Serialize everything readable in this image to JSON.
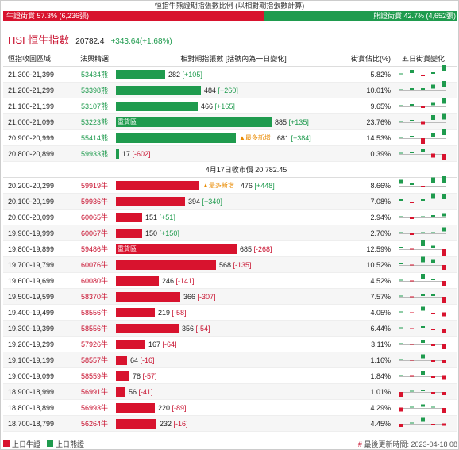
{
  "title": "恒指牛熊證期指張數比例 (以相對期指張數計算)",
  "ratio": {
    "bull_label": "牛證街貨 57.3% (6,236張)",
    "bear_label": "熊證街貨 42.7% (4,652張)",
    "bull_pct": 57.3,
    "bear_pct": 42.7,
    "bull_color": "#d8132e",
    "bear_color": "#1f9b4e"
  },
  "index": {
    "name": "HSI 恒生指數",
    "value": "20782.4",
    "change": "+343.64(+1.68%)"
  },
  "headers": {
    "range": "恒指收回區域",
    "code": "法興精選",
    "bar": "相對期指張數 [括號內為一日變化]",
    "pct": "街貨佔比(%)",
    "spark": "五日街貨變化"
  },
  "bear_rows": [
    {
      "range": "21,300-21,399",
      "code": "53434熊",
      "count": "282",
      "change": "[+105]",
      "pct": "5.82%",
      "value": 282,
      "tag": "",
      "new": "",
      "spark": [
        0,
        0.5,
        -0.2,
        0.3,
        1
      ]
    },
    {
      "range": "21,200-21,299",
      "code": "53398熊",
      "count": "484",
      "change": "[+260]",
      "pct": "10.01%",
      "value": 484,
      "tag": "",
      "new": "",
      "spark": [
        0,
        0.3,
        0.2,
        0.6,
        1
      ]
    },
    {
      "range": "21,100-21,199",
      "code": "53107熊",
      "count": "466",
      "change": "[+165]",
      "pct": "9.65%",
      "value": 466,
      "tag": "",
      "new": "",
      "spark": [
        0,
        0.2,
        -0.2,
        0.4,
        0.9
      ]
    },
    {
      "range": "21,000-21,099",
      "code": "53223熊",
      "count": "885",
      "change": "[+135]",
      "pct": "23.76%",
      "value": 885,
      "tag": "重貨區",
      "new": "",
      "spark": [
        0,
        0.2,
        -0.4,
        0.8,
        0.9
      ]
    },
    {
      "range": "20,900-20,999",
      "code": "55414熊",
      "count": "681",
      "change": "[+384]",
      "pct": "14.53%",
      "value": 681,
      "tag": "",
      "new": "▲最多新增",
      "spark": [
        0,
        0.3,
        -1,
        0.5,
        1
      ]
    },
    {
      "range": "20,800-20,899",
      "code": "59933熊",
      "count": "17",
      "change": "[-602]",
      "pct": "0.39%",
      "value": 17,
      "tag": "",
      "new": "",
      "spark": [
        0,
        0.2,
        0.5,
        -0.6,
        -1
      ]
    }
  ],
  "close_label": "4月17日收市價 20,782.45",
  "bull_rows": [
    {
      "range": "20,200-20,299",
      "code": "59919牛",
      "count": "476",
      "change": "[+448]",
      "pct": "8.66%",
      "value": 476,
      "tag": "",
      "new": "▲最多新增",
      "spark": [
        0.6,
        0.3,
        -0.2,
        0.9,
        1
      ]
    },
    {
      "range": "20,100-20,199",
      "code": "59936牛",
      "count": "394",
      "change": "[+340]",
      "pct": "7.08%",
      "value": 394,
      "tag": "",
      "new": "",
      "spark": [
        0.3,
        -0.2,
        0.2,
        0.9,
        0.8
      ]
    },
    {
      "range": "20,000-20,099",
      "code": "60065牛",
      "count": "151",
      "change": "[+51]",
      "pct": "2.94%",
      "value": 151,
      "tag": "",
      "new": "",
      "spark": [
        0.1,
        -0.3,
        0.1,
        0.2,
        0.4
      ]
    },
    {
      "range": "19,900-19,999",
      "code": "60067牛",
      "count": "150",
      "change": "[+150]",
      "pct": "2.70%",
      "value": 150,
      "tag": "",
      "new": "",
      "spark": [
        0,
        -0.2,
        0.1,
        0.1,
        0.6
      ]
    },
    {
      "range": "19,800-19,899",
      "code": "59486牛",
      "count": "685",
      "change": "[-268]",
      "pct": "12.59%",
      "value": 685,
      "tag": "重貨區",
      "new": "",
      "spark": [
        0.3,
        -0.1,
        1,
        0.4,
        -1
      ]
    },
    {
      "range": "19,700-19,799",
      "code": "60076牛",
      "count": "568",
      "change": "[-135]",
      "pct": "10.52%",
      "value": 568,
      "tag": "",
      "new": "",
      "spark": [
        0.2,
        -0.1,
        0.9,
        0.6,
        -0.8
      ]
    },
    {
      "range": "19,600-19,699",
      "code": "60080牛",
      "count": "246",
      "change": "[-141]",
      "pct": "4.52%",
      "value": 246,
      "tag": "",
      "new": "",
      "spark": [
        0.1,
        -0.1,
        0.7,
        0.3,
        -0.8
      ]
    },
    {
      "range": "19,500-19,599",
      "code": "58370牛",
      "count": "366",
      "change": "[-307]",
      "pct": "7.57%",
      "value": 366,
      "tag": "",
      "new": "",
      "spark": [
        0.1,
        -0.1,
        0.3,
        0.2,
        -1
      ]
    },
    {
      "range": "19,400-19,499",
      "code": "58556牛",
      "count": "219",
      "change": "[-58]",
      "pct": "4.05%",
      "value": 219,
      "tag": "",
      "new": "",
      "spark": [
        0.1,
        -0.1,
        0.6,
        -0.3,
        -0.6
      ]
    },
    {
      "range": "19,300-19,399",
      "code": "58556牛",
      "count": "356",
      "change": "[-54]",
      "pct": "6.44%",
      "value": 356,
      "tag": "",
      "new": "",
      "spark": [
        0.1,
        -0.1,
        0.3,
        -0.2,
        -0.7
      ]
    },
    {
      "range": "19,200-19,299",
      "code": "57926牛",
      "count": "167",
      "change": "[-64]",
      "pct": "3.11%",
      "value": 167,
      "tag": "",
      "new": "",
      "spark": [
        0.1,
        -0.1,
        0.5,
        -0.3,
        -0.7
      ]
    },
    {
      "range": "19,100-19,199",
      "code": "58557牛",
      "count": "64",
      "change": "[-16]",
      "pct": "1.16%",
      "value": 64,
      "tag": "",
      "new": "",
      "spark": [
        0.1,
        -0.1,
        0.6,
        -0.2,
        -0.5
      ]
    },
    {
      "range": "19,000-19,099",
      "code": "58559牛",
      "count": "78",
      "change": "[-57]",
      "pct": "1.84%",
      "value": 78,
      "tag": "",
      "new": "",
      "spark": [
        0.1,
        -0.1,
        0.5,
        -0.2,
        -0.6
      ]
    },
    {
      "range": "18,900-18,999",
      "code": "56991牛",
      "count": "56",
      "change": "[-41]",
      "pct": "1.01%",
      "value": 56,
      "tag": "",
      "new": "",
      "spark": [
        -0.8,
        0.1,
        0.3,
        -0.2,
        -0.5
      ]
    },
    {
      "range": "18,800-18,899",
      "code": "56993牛",
      "count": "220",
      "change": "[-89]",
      "pct": "4.29%",
      "value": 220,
      "tag": "",
      "new": "",
      "spark": [
        -0.6,
        0.1,
        0.4,
        0.1,
        -0.7
      ]
    },
    {
      "range": "18,700-18,799",
      "code": "56264牛",
      "count": "232",
      "change": "[-16]",
      "pct": "4.45%",
      "value": 232,
      "tag": "",
      "new": "",
      "spark": [
        -0.5,
        0.1,
        0.6,
        -0.2,
        -0.4
      ]
    }
  ],
  "legend": {
    "bull": "上日牛證",
    "bear": "上日熊證"
  },
  "update": {
    "hash": "#",
    "text": "最後更新時間: 2023-04-18 08"
  }
}
